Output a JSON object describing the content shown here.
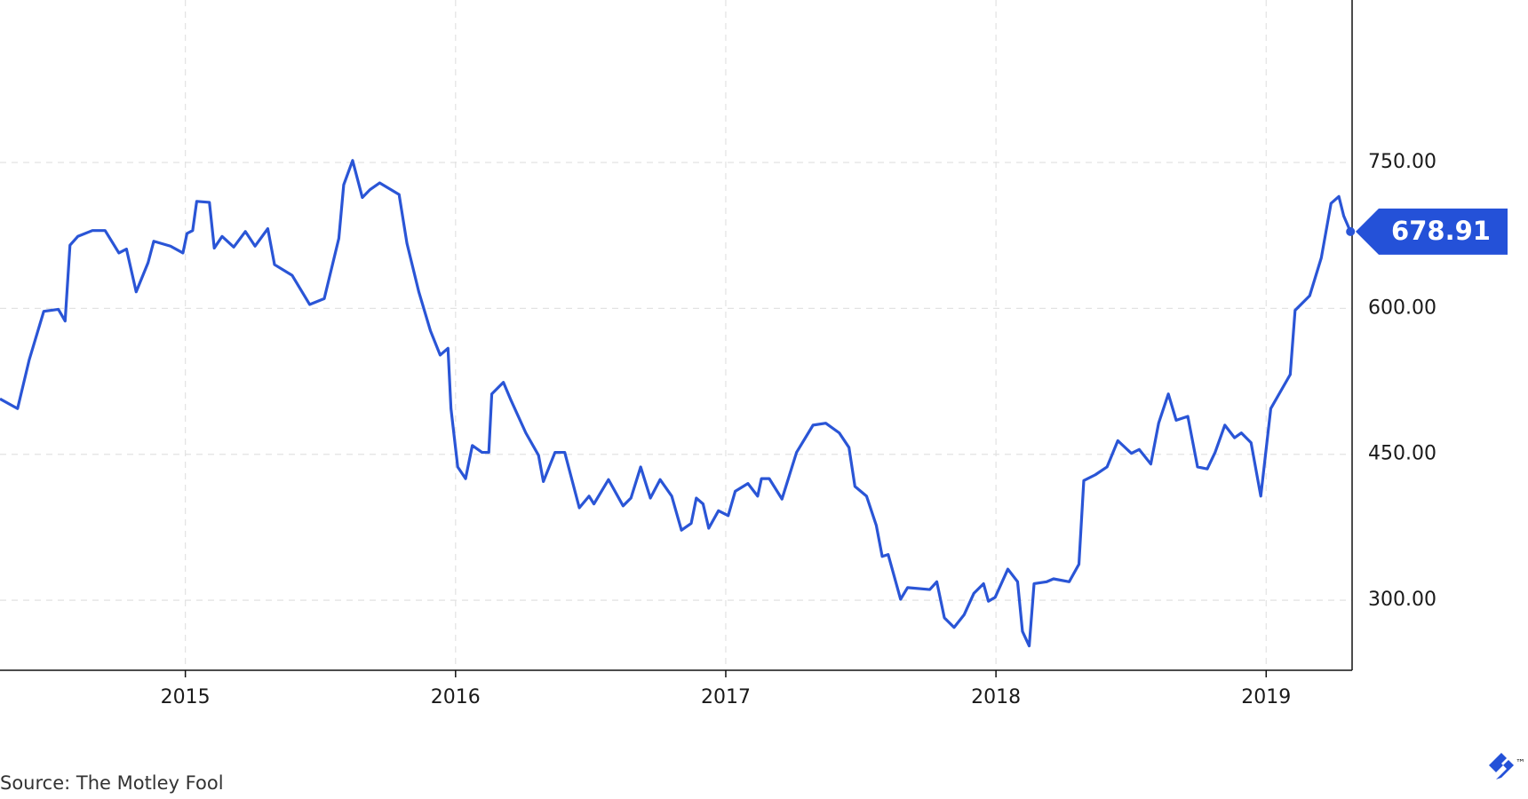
{
  "chart_data": {
    "type": "line",
    "source": "Source: The Motley Fool",
    "logo_mark": "™",
    "x": [
      2014.314,
      2014.379,
      2014.422,
      2014.476,
      2014.53,
      2014.555,
      2014.573,
      2014.602,
      2014.656,
      2014.703,
      2014.754,
      2014.782,
      2014.818,
      2014.862,
      2014.883,
      2014.945,
      2014.991,
      2015.006,
      2015.027,
      2015.042,
      2015.089,
      2015.107,
      2015.136,
      2015.179,
      2015.222,
      2015.258,
      2015.305,
      2015.33,
      2015.395,
      2015.46,
      2015.514,
      2015.568,
      2015.586,
      2015.619,
      2015.655,
      2015.683,
      2015.719,
      2015.791,
      2015.82,
      2015.864,
      2015.907,
      2015.943,
      2015.972,
      2015.983,
      2016.008,
      2016.037,
      2016.062,
      2016.098,
      2016.123,
      2016.134,
      2016.177,
      2016.206,
      2016.26,
      2016.307,
      2016.325,
      2016.368,
      2016.404,
      2016.458,
      2016.494,
      2016.512,
      2016.566,
      2016.62,
      2016.649,
      2016.685,
      2016.721,
      2016.757,
      2016.8,
      2016.836,
      2016.872,
      2016.891,
      2016.916,
      2016.937,
      2016.973,
      2017.009,
      2017.035,
      2017.082,
      2017.118,
      2017.132,
      2017.161,
      2017.208,
      2017.262,
      2017.323,
      2017.37,
      2017.42,
      2017.456,
      2017.478,
      2017.521,
      2017.557,
      2017.579,
      2017.601,
      2017.647,
      2017.673,
      2017.755,
      2017.781,
      2017.809,
      2017.845,
      2017.882,
      2017.918,
      2017.954,
      2017.972,
      2017.997,
      2018.044,
      2018.08,
      2018.098,
      2018.123,
      2018.141,
      2018.188,
      2018.213,
      2018.271,
      2018.307,
      2018.325,
      2018.368,
      2018.411,
      2018.451,
      2018.501,
      2018.53,
      2018.573,
      2018.602,
      2018.638,
      2018.667,
      2018.71,
      2018.746,
      2018.782,
      2018.811,
      2018.847,
      2018.883,
      2018.908,
      2018.944,
      2018.98,
      2019.017,
      2019.089,
      2019.107,
      2019.161,
      2019.204,
      2019.24,
      2019.269,
      2019.287,
      2019.312
    ],
    "series": [
      {
        "color": "#2a55d6",
        "values": [
          507,
          497,
          547,
          597,
          599,
          587,
          665,
          674,
          680,
          680,
          657,
          661,
          617,
          647,
          669,
          664,
          657,
          677,
          680,
          710,
          709,
          662,
          674,
          663,
          679,
          664,
          682,
          645,
          634,
          604,
          610,
          672,
          727,
          752,
          714,
          722,
          729,
          717,
          667,
          617,
          577,
          552,
          559,
          497,
          437,
          425,
          459,
          452,
          452,
          512,
          524,
          505,
          472,
          449,
          422,
          452,
          452,
          395,
          407,
          399,
          424,
          397,
          405,
          437,
          405,
          424,
          407,
          372,
          379,
          405,
          399,
          374,
          392,
          387,
          412,
          420,
          407,
          425,
          425,
          404,
          452,
          480,
          482,
          472,
          457,
          417,
          407,
          377,
          345,
          347,
          301,
          313,
          311,
          319,
          282,
          272,
          285,
          307,
          317,
          299,
          303,
          332,
          319,
          268,
          253,
          317,
          319,
          322,
          319,
          337,
          423,
          429,
          437,
          464,
          451,
          455,
          440,
          482,
          512,
          485,
          489,
          437,
          435,
          452,
          480,
          467,
          472,
          462,
          407,
          497,
          532,
          598,
          613,
          652,
          708,
          715,
          695,
          678.91
        ]
      }
    ],
    "badge_color": "#2451d8",
    "xlim": [
      2014.314,
      2019.318
    ],
    "xticks": [
      2015,
      2016,
      2017,
      2018,
      2019
    ],
    "ylim": [
      228,
      917
    ],
    "yticks": [
      {
        "value": 300,
        "label": "300.00"
      },
      {
        "value": 450,
        "label": "450.00"
      },
      {
        "value": 600,
        "label": "600.00"
      },
      {
        "value": 750,
        "label": "750.00"
      }
    ],
    "grid": true
  }
}
